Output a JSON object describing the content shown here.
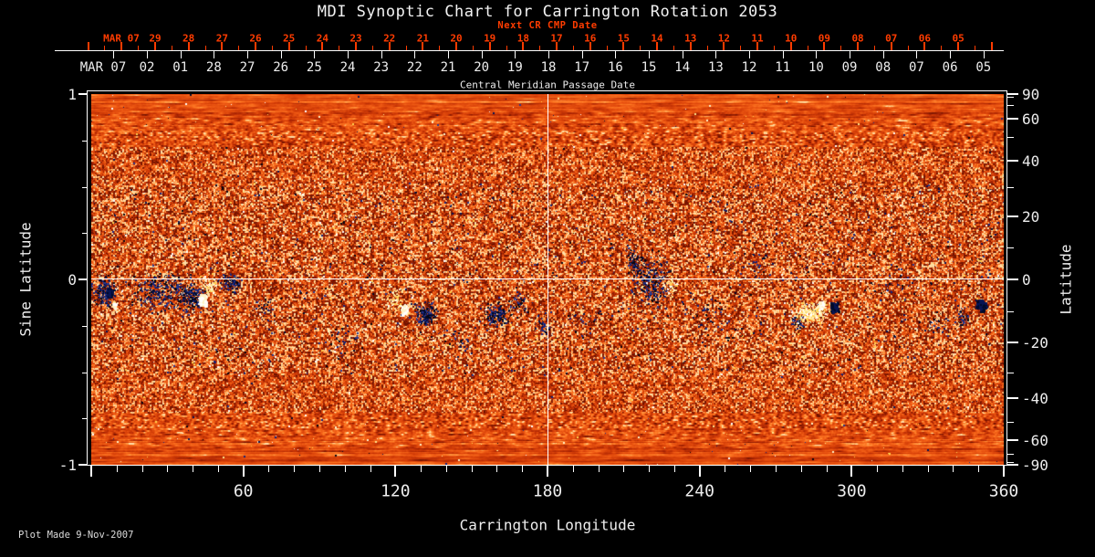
{
  "title": "MDI Synoptic Chart for Carrington Rotation 2053",
  "top_axis": {
    "label": "Next CR CMP Date",
    "month_label": "MAR 07",
    "color": "#ff3c00",
    "day_labels": [
      "29",
      "28",
      "27",
      "26",
      "25",
      "24",
      "23",
      "22",
      "21",
      "20",
      "19",
      "18",
      "17",
      "16",
      "15",
      "14",
      "13",
      "12",
      "11",
      "10",
      "09",
      "08",
      "07",
      "06",
      "05"
    ]
  },
  "cmp_axis": {
    "label": "Central Meridian Passage Date",
    "month_label": "MAR 07",
    "day_labels": [
      "02",
      "01",
      "28",
      "27",
      "26",
      "25",
      "24",
      "23",
      "22",
      "21",
      "20",
      "19",
      "18",
      "17",
      "16",
      "15",
      "14",
      "13",
      "12",
      "11",
      "10",
      "09",
      "08",
      "07",
      "06",
      "05"
    ]
  },
  "left_axis": {
    "title": "Sine Latitude",
    "major_ticks": [
      1,
      0,
      -1
    ],
    "major_labels": [
      "1",
      "0",
      "-1"
    ],
    "minor_ticks": [
      0.75,
      0.5,
      0.25,
      -0.25,
      -0.5,
      -0.75
    ]
  },
  "right_axis": {
    "title": "Latitude",
    "major_ticks": [
      90,
      60,
      40,
      20,
      0,
      -20,
      -40,
      -60,
      -90
    ],
    "major_labels": [
      "90",
      "60",
      "40",
      "20",
      "0",
      "-20",
      "-40",
      "-60",
      "-90"
    ],
    "minor_ticks": [
      80,
      70,
      50,
      30,
      10,
      -10,
      -30,
      -50,
      -70,
      -80
    ]
  },
  "bottom_axis": {
    "title": "Carrington Longitude",
    "major_ticks": [
      0,
      60,
      120,
      180,
      240,
      300,
      360
    ],
    "labeled_ticks": [
      60,
      120,
      180,
      240,
      300,
      360
    ],
    "minor_step": 10
  },
  "footer": {
    "text": "Plot Made  9-Nov-2007"
  },
  "chart_data": {
    "type": "heatmap",
    "description": "SOHO/MDI solar magnetic synoptic map for Carrington rotation 2053: speckled orange/red photospheric field with dark-blue negative-polarity and white/yellow positive-polarity active regions along the activity belt; white reference lines at 180 deg longitude and at the equator (sine latitude 0).",
    "x_range": [
      0,
      360
    ],
    "y_range_sine": [
      -1,
      1
    ],
    "grid_lines": {
      "longitude": 180,
      "sine_latitude": 0
    },
    "background_stops": [
      [
        0.0,
        "#6e1200"
      ],
      [
        0.18,
        "#a82303"
      ],
      [
        0.42,
        "#d63f08"
      ],
      [
        0.62,
        "#ef5a14"
      ],
      [
        0.8,
        "#ff7c26"
      ],
      [
        0.93,
        "#ffa954"
      ],
      [
        1.0,
        "#ffe0a8"
      ]
    ],
    "negative_palette": [
      "#000a28",
      "#071454",
      "#14247e",
      "#27388f",
      "#05050f"
    ],
    "positive_palette": [
      "#ffffff",
      "#fff3c8",
      "#ffe58c",
      "#ffd24f"
    ],
    "active_regions": [
      {
        "lon": 5,
        "sin_lat": -0.07,
        "spread_lon": 4,
        "spread_sin": 0.07,
        "polarity": "neg",
        "n": 240
      },
      {
        "lon": 7,
        "sin_lat": -0.07,
        "spread_lon": 1.5,
        "spread_sin": 0.035,
        "polarity": "neg",
        "n": 150,
        "core": true
      },
      {
        "lon": 9,
        "sin_lat": -0.14,
        "spread_lon": 0.9,
        "spread_sin": 0.02,
        "polarity": "pos",
        "n": 60,
        "core": true
      },
      {
        "lon": 28,
        "sin_lat": -0.07,
        "spread_lon": 11,
        "spread_sin": 0.09,
        "polarity": "neg",
        "n": 420
      },
      {
        "lon": 40,
        "sin_lat": -0.09,
        "spread_lon": 4,
        "spread_sin": 0.05,
        "polarity": "neg",
        "n": 200
      },
      {
        "lon": 55,
        "sin_lat": -0.02,
        "spread_lon": 3.5,
        "spread_sin": 0.045,
        "polarity": "neg",
        "n": 150
      },
      {
        "lon": 44,
        "sin_lat": -0.11,
        "spread_lon": 2.3,
        "spread_sin": 0.05,
        "polarity": "pos",
        "n": 280,
        "core": true
      },
      {
        "lon": 47,
        "sin_lat": -0.04,
        "spread_lon": 3,
        "spread_sin": 0.04,
        "polarity": "pos",
        "n": 80
      },
      {
        "lon": 68,
        "sin_lat": -0.16,
        "spread_lon": 4,
        "spread_sin": 0.05,
        "polarity": "neg",
        "n": 45
      },
      {
        "lon": 100,
        "sin_lat": -0.33,
        "spread_lon": 8,
        "spread_sin": 0.07,
        "polarity": "neg",
        "n": 40
      },
      {
        "lon": 123.5,
        "sin_lat": -0.16,
        "spread_lon": 1.9,
        "spread_sin": 0.04,
        "polarity": "pos",
        "n": 220,
        "core": true
      },
      {
        "lon": 120,
        "sin_lat": -0.11,
        "spread_lon": 3,
        "spread_sin": 0.05,
        "polarity": "pos",
        "n": 70
      },
      {
        "lon": 132,
        "sin_lat": -0.19,
        "spread_lon": 3.5,
        "spread_sin": 0.05,
        "polarity": "neg",
        "n": 240
      },
      {
        "lon": 146,
        "sin_lat": -0.33,
        "spread_lon": 6,
        "spread_sin": 0.05,
        "polarity": "neg",
        "n": 35
      },
      {
        "lon": 160,
        "sin_lat": -0.19,
        "spread_lon": 4,
        "spread_sin": 0.05,
        "polarity": "neg",
        "n": 190
      },
      {
        "lon": 169,
        "sin_lat": -0.13,
        "spread_lon": 3,
        "spread_sin": 0.05,
        "polarity": "neg",
        "n": 60
      },
      {
        "lon": 178,
        "sin_lat": -0.25,
        "spread_lon": 2.5,
        "spread_sin": 0.045,
        "polarity": "neg",
        "n": 60
      },
      {
        "lon": 196,
        "sin_lat": -0.22,
        "spread_lon": 6,
        "spread_sin": 0.07,
        "polarity": "neg",
        "n": 45
      },
      {
        "lon": 214,
        "sin_lat": 0.1,
        "spread_lon": 3,
        "spread_sin": 0.06,
        "polarity": "neg",
        "n": 130
      },
      {
        "lon": 221,
        "sin_lat": -0.02,
        "spread_lon": 6.5,
        "spread_sin": 0.13,
        "polarity": "neg",
        "n": 380
      },
      {
        "lon": 229,
        "sin_lat": -0.03,
        "spread_lon": 3,
        "spread_sin": 0.05,
        "polarity": "pos",
        "n": 60
      },
      {
        "lon": 243,
        "sin_lat": -0.2,
        "spread_lon": 7,
        "spread_sin": 0.09,
        "polarity": "neg",
        "n": 55
      },
      {
        "lon": 262,
        "sin_lat": 0.05,
        "spread_lon": 8,
        "spread_sin": 0.1,
        "polarity": "neg",
        "n": 40
      },
      {
        "lon": 279,
        "sin_lat": -0.22,
        "spread_lon": 2.2,
        "spread_sin": 0.035,
        "polarity": "neg",
        "n": 70
      },
      {
        "lon": 284,
        "sin_lat": -0.18,
        "spread_lon": 6,
        "spread_sin": 0.045,
        "polarity": "pos",
        "n": 340
      },
      {
        "lon": 288,
        "sin_lat": -0.14,
        "spread_lon": 1.6,
        "spread_sin": 0.03,
        "polarity": "pos",
        "n": 110,
        "core": true
      },
      {
        "lon": 293,
        "sin_lat": -0.15,
        "spread_lon": 2.2,
        "spread_sin": 0.04,
        "polarity": "neg",
        "n": 220,
        "core": true
      },
      {
        "lon": 316,
        "sin_lat": -0.02,
        "spread_lon": 9,
        "spread_sin": 0.1,
        "polarity": "neg",
        "n": 45
      },
      {
        "lon": 333,
        "sin_lat": -0.26,
        "spread_lon": 5,
        "spread_sin": 0.05,
        "polarity": "neg",
        "n": 40
      },
      {
        "lon": 344,
        "sin_lat": -0.2,
        "spread_lon": 2.5,
        "spread_sin": 0.04,
        "polarity": "neg",
        "n": 60
      },
      {
        "lon": 351,
        "sin_lat": -0.14,
        "spread_lon": 2.8,
        "spread_sin": 0.04,
        "polarity": "neg",
        "n": 220,
        "core": true
      }
    ]
  }
}
